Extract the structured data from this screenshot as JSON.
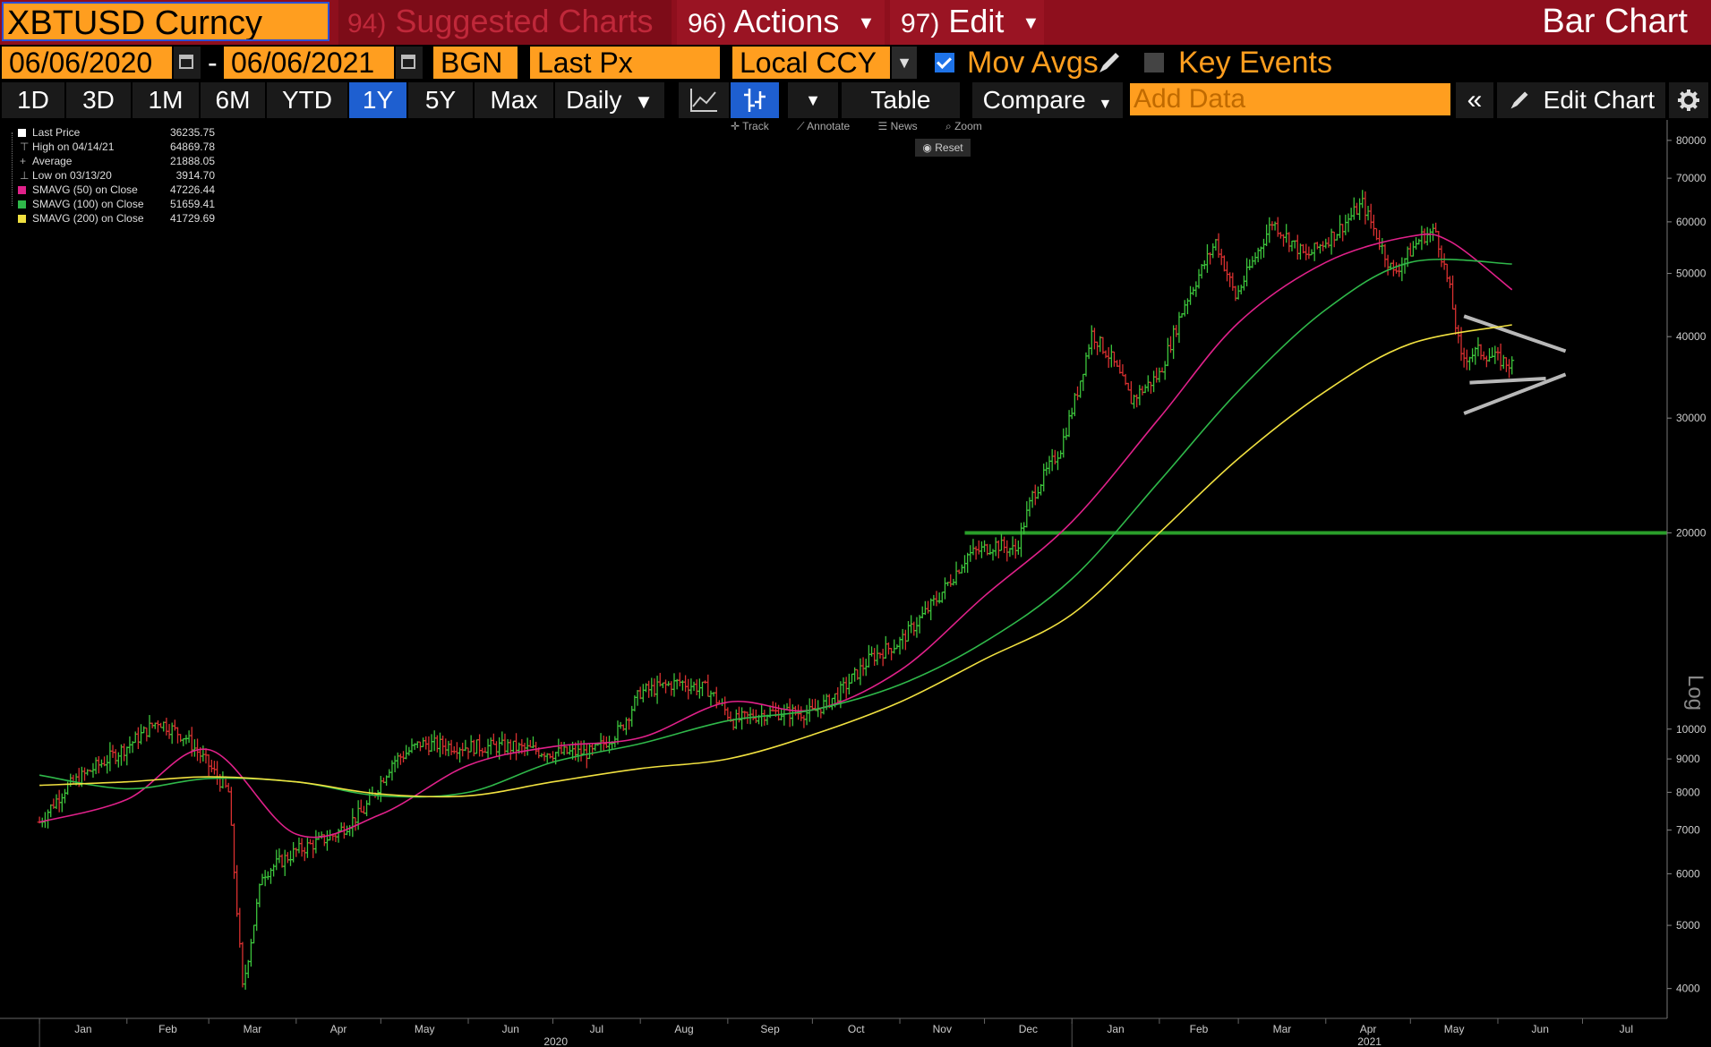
{
  "header": {
    "ticker": "XBTUSD Curncy",
    "suggested_num": "94)",
    "suggested_label": "Suggested Charts",
    "actions_num": "96)",
    "actions_label": "Actions",
    "edit_num": "97)",
    "edit_label": "Edit",
    "chart_type": "Bar Chart"
  },
  "settings": {
    "start_date": "06/06/2020",
    "end_date": "06/06/2021",
    "source": "BGN",
    "field": "Last Px",
    "currency": "Local CCY",
    "mov_avgs_label": "Mov Avgs",
    "mov_avgs_checked": true,
    "key_events_label": "Key Events",
    "key_events_checked": false
  },
  "toolbar": {
    "periods": [
      "1D",
      "3D",
      "1M",
      "6M",
      "YTD",
      "1Y",
      "5Y",
      "Max"
    ],
    "active_period": "1Y",
    "frequency": "Daily",
    "table_label": "Table",
    "compare_label": "Compare",
    "add_data_placeholder": "Add Data",
    "edit_chart_label": "Edit Chart"
  },
  "chart_tools": {
    "track": "Track",
    "annotate": "Annotate",
    "news": "News",
    "zoom": "Zoom",
    "reset": "Reset"
  },
  "legend": [
    {
      "label": "Last Price",
      "value": "36235.75",
      "color": "#ffffff",
      "glyph": ""
    },
    {
      "label": "High on 04/14/21",
      "value": "64869.78",
      "color": "",
      "glyph": "⊤"
    },
    {
      "label": "Average",
      "value": "21888.05",
      "color": "",
      "glyph": "+"
    },
    {
      "label": "Low on 03/13/20",
      "value": "3914.70",
      "color": "",
      "glyph": "⊥"
    },
    {
      "label": "SMAVG (50)  on Close",
      "value": "47226.44",
      "color": "#e0218a",
      "glyph": ""
    },
    {
      "label": "SMAVG (100)  on Close",
      "value": "51659.41",
      "color": "#2fb84a",
      "glyph": ""
    },
    {
      "label": "SMAVG (200)  on Close",
      "value": "41729.69",
      "color": "#f0e040",
      "glyph": ""
    }
  ],
  "chart_data": {
    "type": "bar",
    "title": "",
    "x_months": [
      "Jan",
      "Feb",
      "Mar",
      "Apr",
      "May",
      "Jun",
      "Jul",
      "Aug",
      "Sep",
      "Oct",
      "Nov",
      "Dec",
      "Jan",
      "Feb",
      "Mar",
      "Apr",
      "May",
      "Jun",
      "Jul"
    ],
    "x_years": [
      "2020",
      "2021"
    ],
    "y_scale": "log",
    "ylim": [
      3600,
      86000
    ],
    "y_ticks": [
      4000,
      5000,
      6000,
      7000,
      8000,
      9000,
      10000,
      20000,
      30000,
      40000,
      50000,
      60000,
      70000,
      80000
    ],
    "y_tick_labels": [
      "4000",
      "5000",
      "6000",
      "7000",
      "8000",
      "9000",
      "10000",
      "20000",
      "30000",
      "40000",
      "50000",
      "60000",
      "70000",
      "80000"
    ],
    "axis_side_label": "Log",
    "series": [
      {
        "name": "Last Price",
        "style": "ohlc",
        "up_color": "#3cc43c",
        "down_color": "#d83030",
        "points": [
          [
            "2020-01-01",
            7200
          ],
          [
            "2020-01-10",
            8100
          ],
          [
            "2020-01-20",
            8700
          ],
          [
            "2020-02-01",
            9400
          ],
          [
            "2020-02-12",
            10300
          ],
          [
            "2020-02-22",
            9700
          ],
          [
            "2020-03-01",
            8800
          ],
          [
            "2020-03-08",
            8000
          ],
          [
            "2020-03-13",
            4000
          ],
          [
            "2020-03-20",
            6000
          ],
          [
            "2020-04-01",
            6500
          ],
          [
            "2020-04-15",
            6900
          ],
          [
            "2020-04-25",
            7500
          ],
          [
            "2020-05-05",
            8900
          ],
          [
            "2020-05-15",
            9500
          ],
          [
            "2020-05-31",
            9400
          ],
          [
            "2020-06-15",
            9400
          ],
          [
            "2020-07-01",
            9200
          ],
          [
            "2020-07-15",
            9200
          ],
          [
            "2020-07-25",
            10000
          ],
          [
            "2020-08-01",
            11400
          ],
          [
            "2020-08-15",
            11800
          ],
          [
            "2020-08-25",
            11500
          ],
          [
            "2020-09-03",
            10300
          ],
          [
            "2020-09-15",
            10600
          ],
          [
            "2020-10-01",
            10600
          ],
          [
            "2020-10-10",
            11300
          ],
          [
            "2020-10-22",
            12900
          ],
          [
            "2020-11-01",
            13600
          ],
          [
            "2020-11-15",
            16000
          ],
          [
            "2020-11-25",
            18500
          ],
          [
            "2020-12-05",
            19200
          ],
          [
            "2020-12-12",
            18800
          ],
          [
            "2020-12-18",
            22800
          ],
          [
            "2020-12-28",
            27000
          ],
          [
            "2021-01-03",
            33000
          ],
          [
            "2021-01-08",
            40500
          ],
          [
            "2021-01-15",
            37000
          ],
          [
            "2021-01-22",
            32000
          ],
          [
            "2021-02-01",
            35000
          ],
          [
            "2021-02-10",
            45000
          ],
          [
            "2021-02-21",
            56000
          ],
          [
            "2021-02-28",
            46000
          ],
          [
            "2021-03-13",
            60000
          ],
          [
            "2021-03-25",
            53000
          ],
          [
            "2021-04-05",
            58000
          ],
          [
            "2021-04-14",
            64000
          ],
          [
            "2021-04-25",
            50000
          ],
          [
            "2021-05-05",
            57000
          ],
          [
            "2021-05-10",
            58000
          ],
          [
            "2021-05-15",
            47000
          ],
          [
            "2021-05-19",
            37000
          ],
          [
            "2021-05-25",
            38000
          ],
          [
            "2021-06-06",
            36200
          ]
        ]
      },
      {
        "name": "SMAVG (50)  on Close",
        "style": "line",
        "color": "#e0218a",
        "points": [
          [
            "2020-01-01",
            7200
          ],
          [
            "2020-02-01",
            7800
          ],
          [
            "2020-03-01",
            9300
          ],
          [
            "2020-04-01",
            6900
          ],
          [
            "2020-05-01",
            7400
          ],
          [
            "2020-06-01",
            8800
          ],
          [
            "2020-07-01",
            9400
          ],
          [
            "2020-08-01",
            9700
          ],
          [
            "2020-09-01",
            11000
          ],
          [
            "2020-10-01",
            10700
          ],
          [
            "2020-11-01",
            12300
          ],
          [
            "2020-12-01",
            16000
          ],
          [
            "2021-01-01",
            20800
          ],
          [
            "2021-02-01",
            30000
          ],
          [
            "2021-03-01",
            42000
          ],
          [
            "2021-04-01",
            52000
          ],
          [
            "2021-05-01",
            57000
          ],
          [
            "2021-05-15",
            56000
          ],
          [
            "2021-06-06",
            47200
          ]
        ]
      },
      {
        "name": "SMAVG (100)  on Close",
        "style": "line",
        "color": "#2fb84a",
        "points": [
          [
            "2020-01-01",
            8500
          ],
          [
            "2020-02-01",
            8100
          ],
          [
            "2020-03-01",
            8400
          ],
          [
            "2020-04-01",
            8300
          ],
          [
            "2020-05-01",
            7900
          ],
          [
            "2020-06-01",
            8000
          ],
          [
            "2020-07-01",
            8900
          ],
          [
            "2020-08-01",
            9500
          ],
          [
            "2020-09-01",
            10300
          ],
          [
            "2020-10-01",
            10700
          ],
          [
            "2020-11-01",
            11700
          ],
          [
            "2020-12-01",
            13600
          ],
          [
            "2021-01-01",
            17000
          ],
          [
            "2021-02-01",
            24000
          ],
          [
            "2021-03-01",
            33000
          ],
          [
            "2021-04-01",
            44000
          ],
          [
            "2021-05-01",
            52000
          ],
          [
            "2021-06-06",
            51700
          ]
        ]
      },
      {
        "name": "SMAVG (200)  on Close",
        "style": "line",
        "color": "#f0e040",
        "points": [
          [
            "2020-01-01",
            8200
          ],
          [
            "2020-02-01",
            8300
          ],
          [
            "2020-03-01",
            8450
          ],
          [
            "2020-04-01",
            8300
          ],
          [
            "2020-05-01",
            7950
          ],
          [
            "2020-06-01",
            7900
          ],
          [
            "2020-07-01",
            8300
          ],
          [
            "2020-08-01",
            8700
          ],
          [
            "2020-09-01",
            9000
          ],
          [
            "2020-10-01",
            9800
          ],
          [
            "2020-11-01",
            11000
          ],
          [
            "2020-12-01",
            12800
          ],
          [
            "2021-01-01",
            15000
          ],
          [
            "2021-02-01",
            20000
          ],
          [
            "2021-03-01",
            26000
          ],
          [
            "2021-04-01",
            33000
          ],
          [
            "2021-05-01",
            39000
          ],
          [
            "2021-06-06",
            41700
          ]
        ]
      }
    ],
    "annotations": [
      {
        "kind": "hline",
        "color": "#2a9e2a",
        "value": 20000,
        "from": "2020-11-24",
        "to": "2021-07-31"
      },
      {
        "kind": "trendline",
        "color": "#b8b8b8",
        "from": [
          "2021-05-20",
          43000
        ],
        "to": [
          "2021-06-25",
          38000
        ]
      },
      {
        "kind": "trendline",
        "color": "#b8b8b8",
        "from": [
          "2021-05-20",
          30500
        ],
        "to": [
          "2021-06-25",
          35000
        ]
      },
      {
        "kind": "trendline",
        "color": "#b8b8b8",
        "from": [
          "2021-05-22",
          34000
        ],
        "to": [
          "2021-06-18",
          34500
        ]
      }
    ]
  }
}
